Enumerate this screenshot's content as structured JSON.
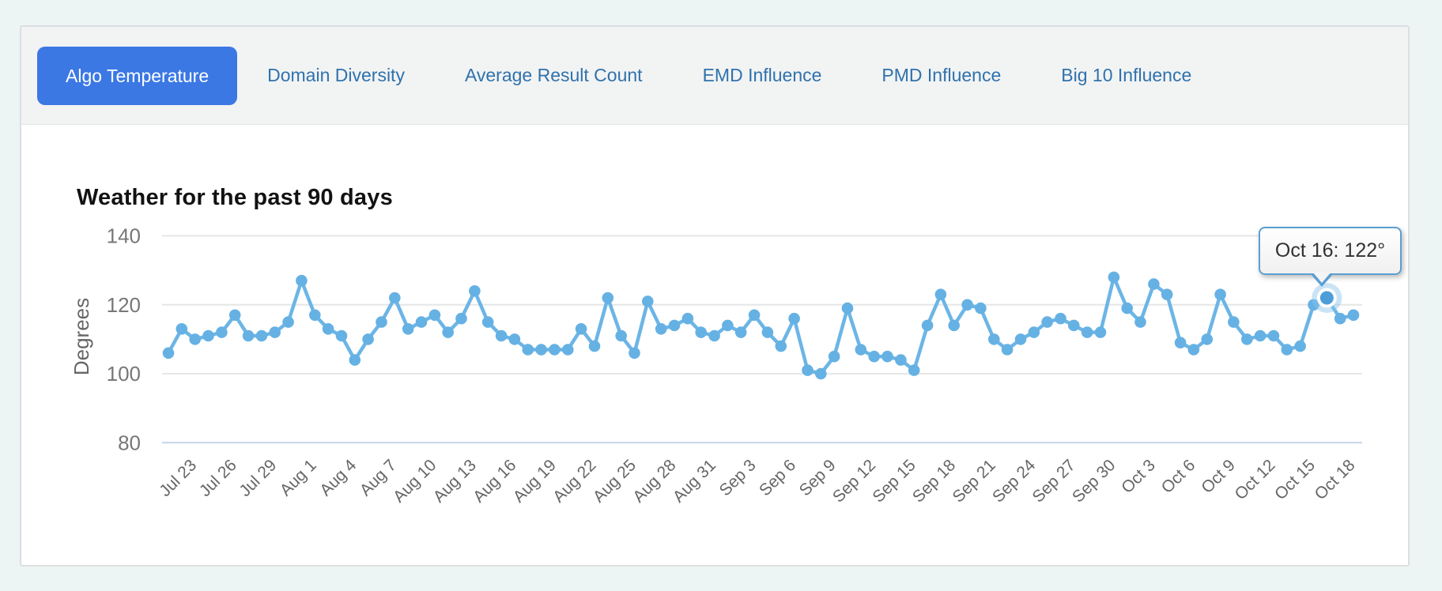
{
  "tabs": {
    "items": [
      {
        "label": "Algo Temperature",
        "active": true
      },
      {
        "label": "Domain Diversity",
        "active": false
      },
      {
        "label": "Average Result Count",
        "active": false
      },
      {
        "label": "EMD Influence",
        "active": false
      },
      {
        "label": "PMD Influence",
        "active": false
      },
      {
        "label": "Big 10 Influence",
        "active": false
      }
    ]
  },
  "chart_data": {
    "type": "line",
    "title": "Weather for the past 90 days",
    "xlabel": "",
    "ylabel": "Degrees",
    "ylim": [
      80,
      145
    ],
    "y_ticks": [
      140,
      120,
      100,
      80
    ],
    "grid": "horizontal-only",
    "legend": "none",
    "x_tick_labels": [
      "Jul 23",
      "Jul 26",
      "Jul 29",
      "Aug 1",
      "Aug 4",
      "Aug 7",
      "Aug 10",
      "Aug 13",
      "Aug 16",
      "Aug 19",
      "Aug 22",
      "Aug 25",
      "Aug 28",
      "Aug 31",
      "Sep 3",
      "Sep 6",
      "Sep 9",
      "Sep 12",
      "Sep 15",
      "Sep 18",
      "Sep 21",
      "Sep 24",
      "Sep 27",
      "Sep 30",
      "Oct 3",
      "Oct 6",
      "Oct 9",
      "Oct 12",
      "Oct 15",
      "Oct 18"
    ],
    "x_tick_first_index": 2,
    "x_tick_step": 3,
    "x": [
      "Jul 21",
      "Jul 22",
      "Jul 23",
      "Jul 24",
      "Jul 25",
      "Jul 26",
      "Jul 27",
      "Jul 28",
      "Jul 29",
      "Jul 30",
      "Jul 31",
      "Aug 1",
      "Aug 2",
      "Aug 3",
      "Aug 4",
      "Aug 5",
      "Aug 6",
      "Aug 7",
      "Aug 8",
      "Aug 9",
      "Aug 10",
      "Aug 11",
      "Aug 12",
      "Aug 13",
      "Aug 14",
      "Aug 15",
      "Aug 16",
      "Aug 17",
      "Aug 18",
      "Aug 19",
      "Aug 20",
      "Aug 21",
      "Aug 22",
      "Aug 23",
      "Aug 24",
      "Aug 25",
      "Aug 26",
      "Aug 27",
      "Aug 28",
      "Aug 29",
      "Aug 30",
      "Aug 31",
      "Sep 1",
      "Sep 2",
      "Sep 3",
      "Sep 4",
      "Sep 5",
      "Sep 6",
      "Sep 7",
      "Sep 8",
      "Sep 9",
      "Sep 10",
      "Sep 11",
      "Sep 12",
      "Sep 13",
      "Sep 14",
      "Sep 15",
      "Sep 16",
      "Sep 17",
      "Sep 18",
      "Sep 19",
      "Sep 20",
      "Sep 21",
      "Sep 22",
      "Sep 23",
      "Sep 24",
      "Sep 25",
      "Sep 26",
      "Sep 27",
      "Sep 28",
      "Sep 29",
      "Sep 30",
      "Oct 1",
      "Oct 2",
      "Oct 3",
      "Oct 4",
      "Oct 5",
      "Oct 6",
      "Oct 7",
      "Oct 8",
      "Oct 9",
      "Oct 10",
      "Oct 11",
      "Oct 12",
      "Oct 13",
      "Oct 14",
      "Oct 15",
      "Oct 16",
      "Oct 17",
      "Oct 18"
    ],
    "series": [
      {
        "name": "Algo Temperature",
        "values": [
          106,
          113,
          110,
          111,
          112,
          117,
          111,
          111,
          112,
          115,
          127,
          117,
          113,
          111,
          104,
          110,
          115,
          122,
          113,
          115,
          117,
          112,
          116,
          124,
          115,
          111,
          110,
          107,
          107,
          107,
          107,
          113,
          108,
          122,
          111,
          106,
          121,
          113,
          114,
          116,
          112,
          111,
          114,
          112,
          117,
          112,
          108,
          116,
          101,
          100,
          105,
          119,
          107,
          105,
          105,
          104,
          101,
          114,
          123,
          114,
          120,
          119,
          110,
          107,
          110,
          112,
          115,
          116,
          114,
          112,
          112,
          128,
          119,
          115,
          126,
          123,
          109,
          107,
          110,
          123,
          115,
          110,
          111,
          111,
          107,
          108,
          120,
          122,
          116,
          117
        ]
      }
    ],
    "highlight": {
      "index": 87,
      "date": "Oct 16",
      "value": 122
    }
  },
  "tooltip": {
    "label": "Oct 16: 122°"
  },
  "colors": {
    "line": "#6cb5e6",
    "marker": "#66b1e3",
    "highlight_marker": "#4d9ed8",
    "highlight_halo": "rgba(137,196,234,0.45)",
    "grid_line": "#e6e6e6",
    "axis_line": "#c6d2e8",
    "tick_text": "#777777",
    "x_tick_text": "#666666",
    "active_tab_bg": "#3b78e4",
    "tab_text": "#2f72ad",
    "tooltip_border": "#5b9fd2"
  }
}
